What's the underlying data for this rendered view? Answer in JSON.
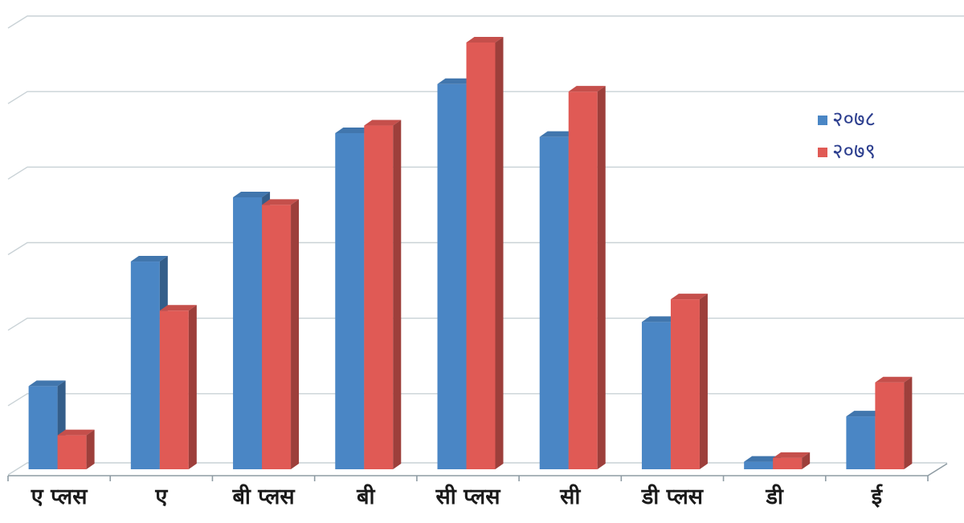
{
  "chart_data": {
    "type": "bar",
    "title": "",
    "xlabel": "",
    "ylabel": "",
    "categories": [
      "ए प्लस",
      "ए",
      "बी प्लस",
      "बी",
      "सी प्लस",
      "सी",
      "डी प्लस",
      "डी",
      "ई"
    ],
    "series": [
      {
        "name": "२०७८",
        "color": "#4a86c5",
        "values": [
          11.0,
          27.5,
          36.0,
          44.5,
          51.0,
          44.0,
          19.5,
          1.0,
          7.0
        ]
      },
      {
        "name": "२०७९",
        "color": "#e05a55",
        "values": [
          4.5,
          21.0,
          35.0,
          45.5,
          56.5,
          50.0,
          22.5,
          1.5,
          11.5
        ]
      }
    ],
    "ylim": [
      0,
      60
    ],
    "grid": true,
    "legend": "right",
    "style": "3d-column"
  }
}
